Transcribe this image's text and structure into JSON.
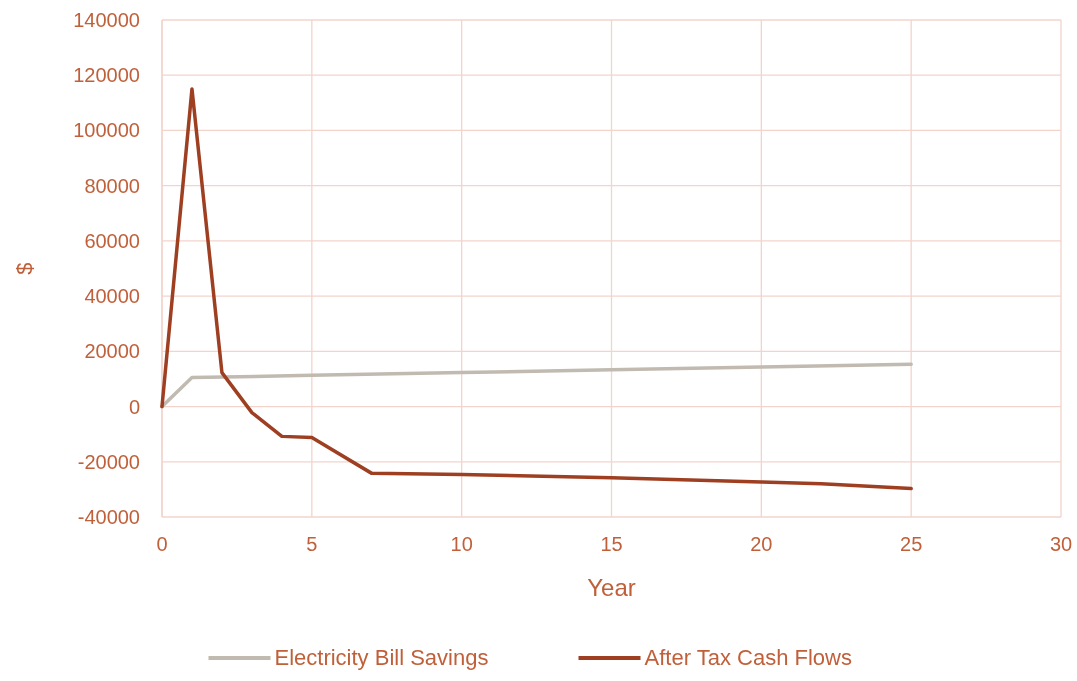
{
  "chart_data": {
    "type": "line",
    "xlabel": "Year",
    "ylabel": "$",
    "xlim": [
      0,
      30
    ],
    "xticks": [
      0,
      5,
      10,
      15,
      20,
      25,
      30
    ],
    "ylim": [
      -40000,
      140000
    ],
    "yticks": [
      -40000,
      -20000,
      0,
      20000,
      40000,
      60000,
      80000,
      100000,
      120000,
      140000
    ],
    "grid": true,
    "legend": "bottom",
    "marker": "none",
    "line_style": "solid",
    "series": [
      {
        "name": "Electricity Bill Savings",
        "color": "#c0bab1",
        "x": [
          0,
          1,
          5,
          10,
          15,
          20,
          25
        ],
        "values": [
          0,
          10500,
          11300,
          12300,
          13300,
          14300,
          15300
        ]
      },
      {
        "name": "After Tax Cash Flows",
        "color": "#9e3f22",
        "x": [
          0,
          1,
          2,
          3,
          4,
          5,
          7,
          10,
          15,
          20,
          22,
          25
        ],
        "values": [
          0,
          115000,
          12300,
          -2200,
          -10800,
          -11200,
          -24200,
          -24600,
          -25800,
          -27300,
          -28000,
          -29700
        ]
      }
    ]
  }
}
